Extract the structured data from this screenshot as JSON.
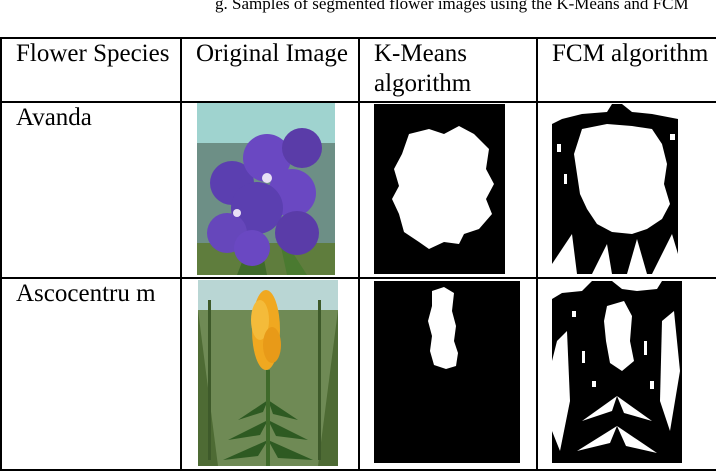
{
  "caption_fragment": "g. Samples of segmented flower images using the K-Means and FCM",
  "table": {
    "headers": [
      "Flower Species",
      "Original Image",
      "K-Means algorithm",
      "FCM algorithm"
    ],
    "rows": [
      {
        "species": "Avanda"
      },
      {
        "species": "Ascocentru m"
      }
    ]
  }
}
